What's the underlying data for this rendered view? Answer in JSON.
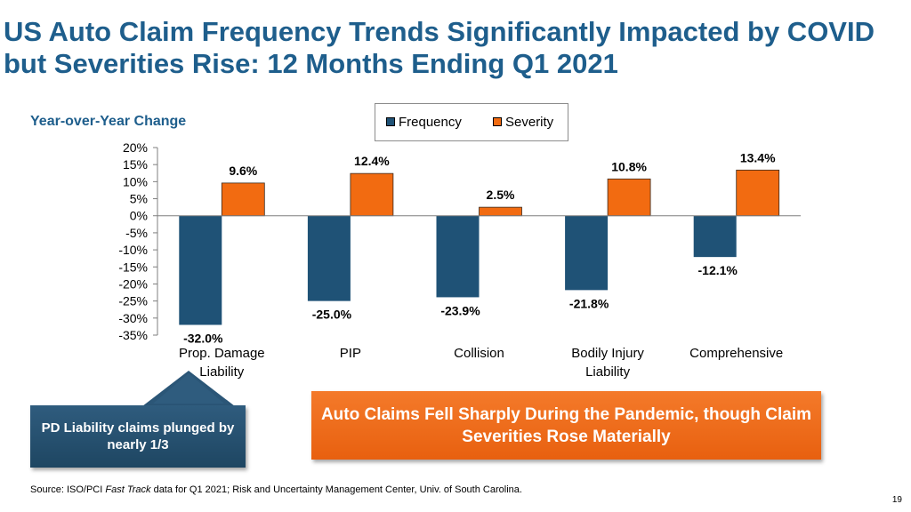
{
  "slide": {
    "title": "US Auto Claim Frequency Trends Significantly Impacted by COVID but Severities Rise: 12 Months Ending Q1 2021",
    "page_number": "19"
  },
  "chart_data": {
    "type": "bar",
    "title": "Year-over-Year Change",
    "categories": [
      "Prop. Damage Liability",
      "PIP",
      "Collision",
      "Bodily Injury Liability",
      "Comprehensive"
    ],
    "category_lines": [
      [
        "Prop. Damage",
        "Liability"
      ],
      [
        "PIP"
      ],
      [
        "Collision"
      ],
      [
        "Bodily Injury",
        "Liability"
      ],
      [
        "Comprehensive"
      ]
    ],
    "series": [
      {
        "name": "Frequency",
        "color": "#1f5276",
        "values": [
          -32.0,
          -25.0,
          -23.9,
          -21.8,
          -12.1
        ],
        "labels": [
          "-32.0%",
          "-25.0%",
          "-23.9%",
          "-21.8%",
          "-12.1%"
        ]
      },
      {
        "name": "Severity",
        "color": "#f26b11",
        "values": [
          9.6,
          12.4,
          2.5,
          10.8,
          13.4
        ],
        "labels": [
          "9.6%",
          "12.4%",
          "2.5%",
          "10.8%",
          "13.4%"
        ]
      }
    ],
    "ylim": [
      -35,
      20
    ],
    "yticks": [
      20,
      15,
      10,
      5,
      0,
      -5,
      -10,
      -15,
      -20,
      -25,
      -30,
      -35
    ],
    "ytick_labels": [
      "20%",
      "15%",
      "10%",
      "5%",
      "0%",
      "-5%",
      "-10%",
      "-15%",
      "-20%",
      "-25%",
      "-30%",
      "-35%"
    ],
    "legend_position": "top-center",
    "grid": false
  },
  "callouts": {
    "left": "PD Liability claims plunged by nearly 1/3",
    "right": "Auto Claims Fell Sharply During the Pandemic, though Claim Severities Rose Materially"
  },
  "source": {
    "prefix": "Source: ISO/PCI ",
    "italic": "Fast Track",
    "suffix": " data for Q1 2021; Risk and Uncertainty Management Center, Univ. of South Carolina."
  }
}
